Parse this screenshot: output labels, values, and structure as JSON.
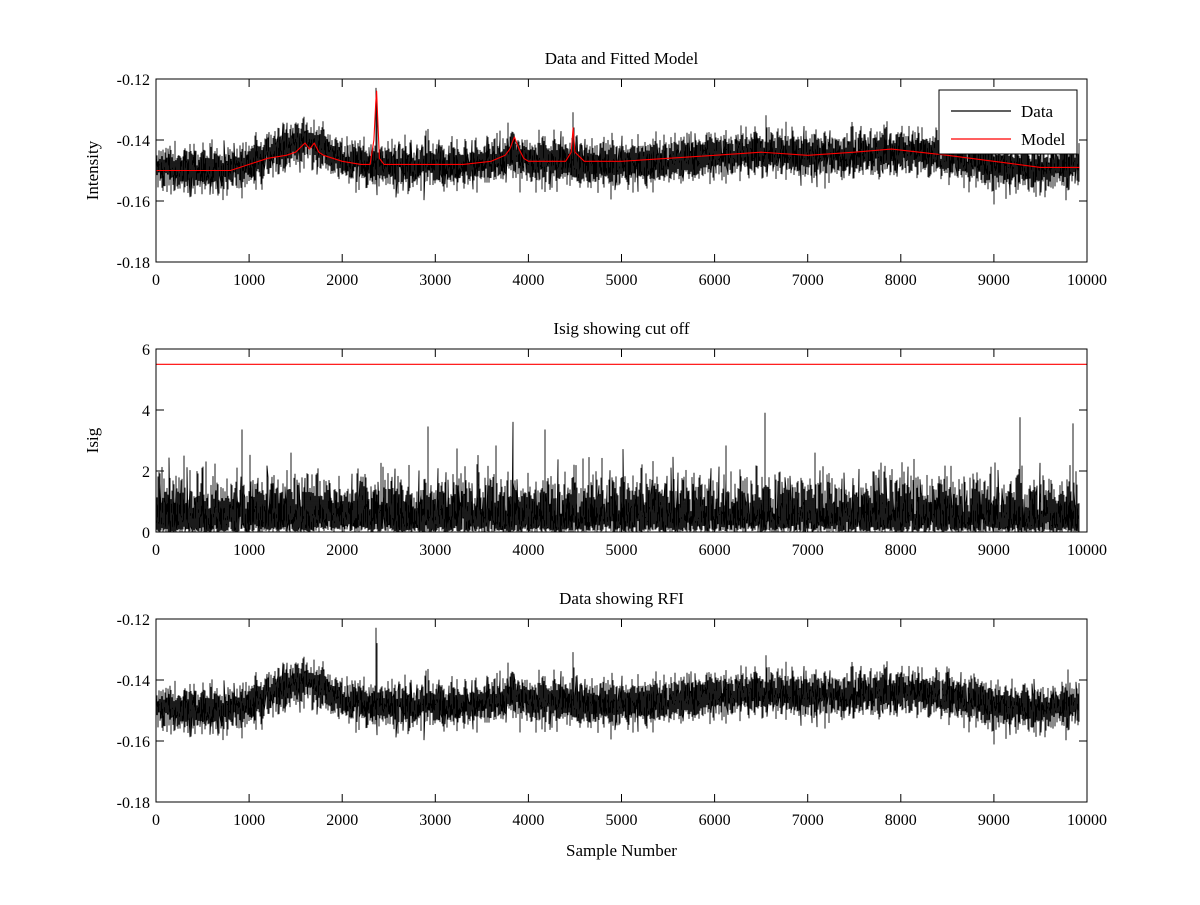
{
  "chart_data": [
    {
      "type": "line",
      "title": "Data and Fitted Model",
      "xlabel": "",
      "ylabel": "Intensity",
      "xlim": [
        0,
        10000
      ],
      "ylim": [
        -0.18,
        -0.12
      ],
      "xticks": [
        0,
        1000,
        2000,
        3000,
        4000,
        5000,
        6000,
        7000,
        8000,
        9000,
        10000
      ],
      "yticks": [
        -0.18,
        -0.16,
        -0.14,
        -0.12
      ],
      "xtick_labels": [
        "0",
        "1000",
        "2000",
        "3000",
        "4000",
        "5000",
        "6000",
        "7000",
        "8000",
        "9000",
        "10000"
      ],
      "ytick_labels": [
        "-0.18",
        "-0.16",
        "-0.14",
        "-0.12"
      ],
      "grid": false,
      "legend": {
        "placement": "top-right",
        "entries": [
          "Data",
          "Model"
        ]
      },
      "series": [
        {
          "name": "Data",
          "color": "#000000",
          "kind": "noisy",
          "n_points": 9920,
          "baseline_x": [
            0,
            800,
            1000,
            1300,
            1600,
            1700,
            1800,
            2000,
            2300,
            2400,
            2700,
            3000,
            3300,
            3600,
            3800,
            3900,
            4000,
            4400,
            4500,
            4700,
            5000,
            5400,
            6000,
            6500,
            7000,
            7500,
            8000,
            8500,
            8800,
            9000,
            9300,
            9600,
            9920
          ],
          "baseline_y": [
            -0.15,
            -0.15,
            -0.148,
            -0.144,
            -0.139,
            -0.141,
            -0.143,
            -0.147,
            -0.148,
            -0.148,
            -0.148,
            -0.148,
            -0.149,
            -0.147,
            -0.145,
            -0.146,
            -0.147,
            -0.147,
            -0.148,
            -0.148,
            -0.148,
            -0.147,
            -0.145,
            -0.144,
            -0.145,
            -0.145,
            -0.144,
            -0.145,
            -0.147,
            -0.148,
            -0.149,
            -0.149,
            -0.148
          ],
          "spikes": [
            {
              "x": 2365,
              "y": -0.123
            },
            {
              "x": 2375,
              "y": -0.128
            },
            {
              "x": 1580,
              "y": -0.133
            },
            {
              "x": 4480,
              "y": -0.131
            },
            {
              "x": 4490,
              "y": -0.136
            },
            {
              "x": 3850,
              "y": -0.138
            },
            {
              "x": 2900,
              "y": -0.137
            },
            {
              "x": 3840,
              "y": -0.14
            },
            {
              "x": 6550,
              "y": -0.132
            },
            {
              "x": 8380,
              "y": -0.136
            },
            {
              "x": 9000,
              "y": -0.161
            }
          ],
          "noise_amplitude": 0.0035
        },
        {
          "name": "Model",
          "color": "#ff0000",
          "kind": "curve",
          "x": [
            0,
            500,
            800,
            1000,
            1200,
            1400,
            1500,
            1600,
            1650,
            1700,
            1750,
            1800,
            1900,
            2000,
            2200,
            2300,
            2340,
            2360,
            2370,
            2380,
            2400,
            2450,
            2600,
            3000,
            3300,
            3600,
            3750,
            3800,
            3850,
            3900,
            3950,
            4000,
            4400,
            4460,
            4480,
            4500,
            4600,
            5000,
            5500,
            6000,
            6500,
            7000,
            7500,
            7900,
            8500,
            9000,
            9500,
            9920
          ],
          "y": [
            -0.15,
            -0.15,
            -0.15,
            -0.148,
            -0.146,
            -0.145,
            -0.144,
            -0.141,
            -0.143,
            -0.141,
            -0.144,
            -0.145,
            -0.146,
            -0.147,
            -0.148,
            -0.148,
            -0.14,
            -0.128,
            -0.124,
            -0.132,
            -0.146,
            -0.148,
            -0.148,
            -0.148,
            -0.148,
            -0.147,
            -0.145,
            -0.143,
            -0.139,
            -0.143,
            -0.146,
            -0.147,
            -0.147,
            -0.144,
            -0.136,
            -0.144,
            -0.147,
            -0.147,
            -0.146,
            -0.145,
            -0.144,
            -0.145,
            -0.144,
            -0.143,
            -0.145,
            -0.147,
            -0.149,
            -0.149
          ]
        }
      ]
    },
    {
      "type": "line",
      "title": "Isig showing cut off",
      "xlabel": "",
      "ylabel": "Isig",
      "xlim": [
        0,
        10000
      ],
      "ylim": [
        0,
        6
      ],
      "xticks": [
        0,
        1000,
        2000,
        3000,
        4000,
        5000,
        6000,
        7000,
        8000,
        9000,
        10000
      ],
      "yticks": [
        0,
        2,
        4,
        6
      ],
      "xtick_labels": [
        "0",
        "1000",
        "2000",
        "3000",
        "4000",
        "5000",
        "6000",
        "7000",
        "8000",
        "9000",
        "10000"
      ],
      "ytick_labels": [
        "0",
        "2",
        "4",
        "6"
      ],
      "grid": false,
      "series": [
        {
          "color": "#000000",
          "kind": "abs-noise",
          "n_points": 9920,
          "scale": 0.75,
          "spikes": [
            {
              "x": 6540,
              "y": 3.9
            },
            {
              "x": 3830,
              "y": 3.6
            },
            {
              "x": 9280,
              "y": 3.75
            },
            {
              "x": 2920,
              "y": 3.45
            },
            {
              "x": 9850,
              "y": 3.55
            },
            {
              "x": 4180,
              "y": 3.35
            },
            {
              "x": 920,
              "y": 3.35
            }
          ]
        },
        {
          "color": "#ff0000",
          "kind": "hline",
          "y": 5.5
        }
      ]
    },
    {
      "type": "line",
      "title": "Data showing RFI",
      "xlabel": "Sample Number",
      "ylabel": "",
      "xlim": [
        0,
        10000
      ],
      "ylim": [
        -0.18,
        -0.12
      ],
      "xticks": [
        0,
        1000,
        2000,
        3000,
        4000,
        5000,
        6000,
        7000,
        8000,
        9000,
        10000
      ],
      "yticks": [
        -0.18,
        -0.16,
        -0.14,
        -0.12
      ],
      "xtick_labels": [
        "0",
        "1000",
        "2000",
        "3000",
        "4000",
        "5000",
        "6000",
        "7000",
        "8000",
        "9000",
        "10000"
      ],
      "ytick_labels": [
        "-0.18",
        "-0.16",
        "-0.14",
        "-0.12"
      ],
      "grid": false,
      "series": [
        {
          "color": "#000000",
          "kind": "noisy",
          "n_points": 9920,
          "same_as_panel_1_data": true,
          "baseline_x": [
            0,
            800,
            1000,
            1300,
            1600,
            1700,
            1800,
            2000,
            2300,
            2400,
            2700,
            3000,
            3300,
            3600,
            3800,
            3900,
            4000,
            4400,
            4500,
            4700,
            5000,
            5400,
            6000,
            6500,
            7000,
            7500,
            8000,
            8500,
            8800,
            9000,
            9300,
            9600,
            9920
          ],
          "baseline_y": [
            -0.15,
            -0.15,
            -0.148,
            -0.144,
            -0.139,
            -0.141,
            -0.143,
            -0.147,
            -0.148,
            -0.148,
            -0.148,
            -0.148,
            -0.149,
            -0.147,
            -0.145,
            -0.146,
            -0.147,
            -0.147,
            -0.148,
            -0.148,
            -0.148,
            -0.147,
            -0.145,
            -0.144,
            -0.145,
            -0.145,
            -0.144,
            -0.145,
            -0.147,
            -0.148,
            -0.149,
            -0.149,
            -0.148
          ],
          "spikes": [
            {
              "x": 2365,
              "y": -0.123
            },
            {
              "x": 2375,
              "y": -0.128
            },
            {
              "x": 1580,
              "y": -0.133
            },
            {
              "x": 4480,
              "y": -0.131
            },
            {
              "x": 4490,
              "y": -0.136
            },
            {
              "x": 3850,
              "y": -0.138
            },
            {
              "x": 2900,
              "y": -0.137
            },
            {
              "x": 3840,
              "y": -0.14
            },
            {
              "x": 6550,
              "y": -0.132
            },
            {
              "x": 8380,
              "y": -0.136
            },
            {
              "x": 9000,
              "y": -0.161
            }
          ],
          "noise_amplitude": 0.0035
        }
      ]
    }
  ]
}
